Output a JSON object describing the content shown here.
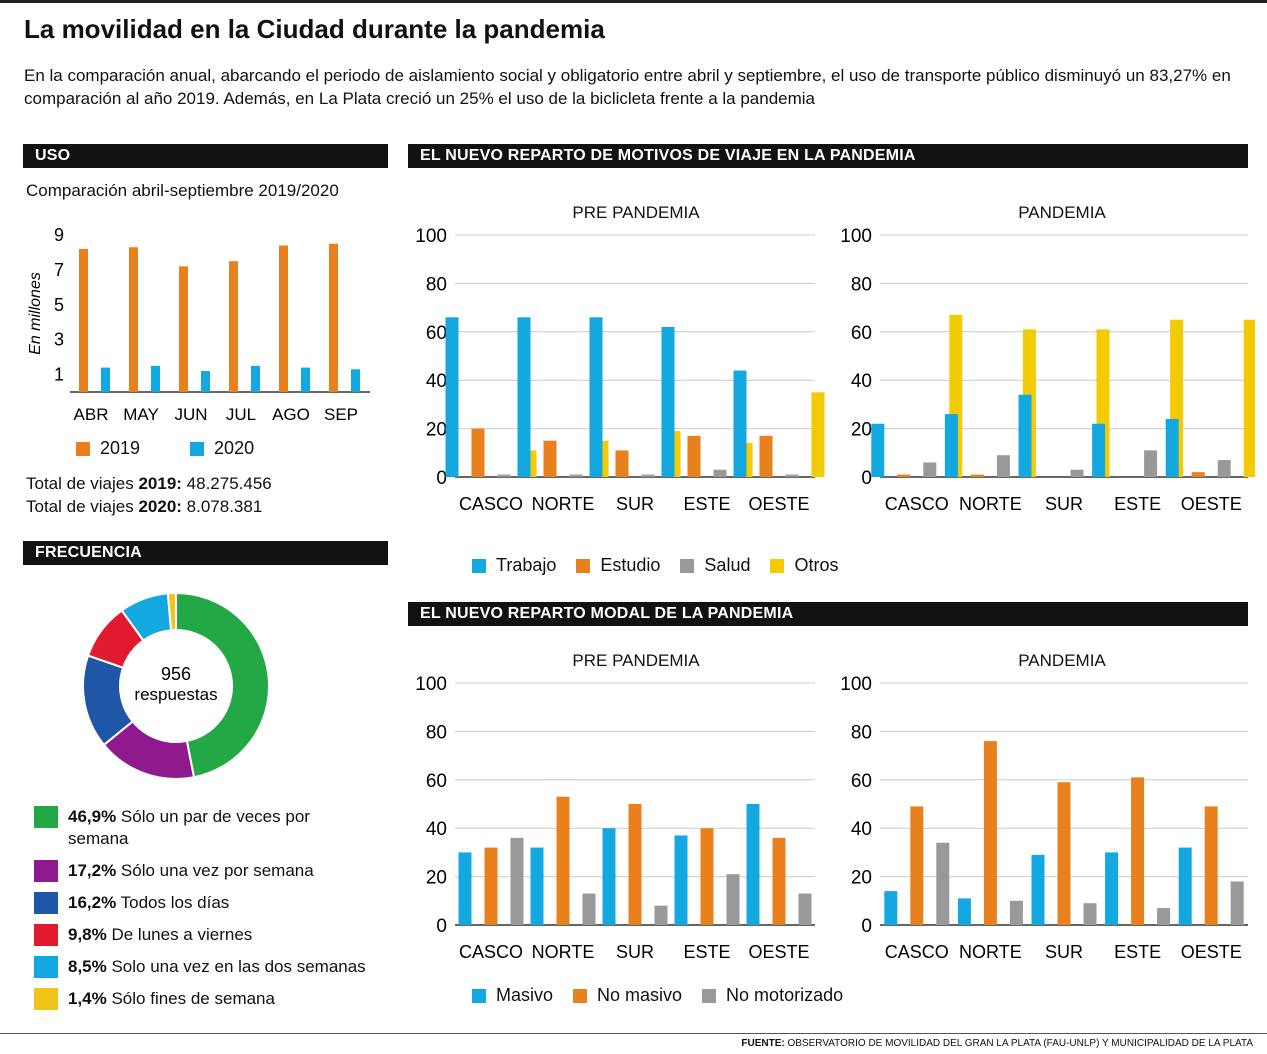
{
  "title": "La movilidad en la Ciudad durante la pandemia",
  "intro": "En la comparación anual, abarcando el periodo de aislamiento social y obligatorio entre abril y septiembre, el uso de transporte público disminuyó un 83,27% en comparación al año 2019. Además, en La Plata creció un 25% el uso de la biclicleta frente a la pandemia",
  "uso": {
    "header": "USO",
    "subtitle": "Comparación abril-septiembre 2019/2020",
    "totals": [
      {
        "prefix": "Total de viajes ",
        "year": "2019:",
        "value": " 48.275.456"
      },
      {
        "prefix": "Total de viajes ",
        "year": "2020:",
        "value": " 8.078.381"
      }
    ]
  },
  "frecuencia": {
    "header": "FRECUENCIA",
    "center_number": "956",
    "center_label": "respuestas",
    "items": [
      {
        "pct": "46,9%",
        "label": " Sólo un par de veces por semana",
        "value": 46.9,
        "color": "#22a845"
      },
      {
        "pct": "17,2%",
        "label": " Sólo una vez por semana",
        "value": 17.2,
        "color": "#8e1a8e"
      },
      {
        "pct": "16,2%",
        "label": " Todos los días",
        "value": 16.2,
        "color": "#1f56a8"
      },
      {
        "pct": "9,8%",
        "label": " De lunes a viernes",
        "value": 9.8,
        "color": "#e01b30"
      },
      {
        "pct": "8,5%",
        "label": " Solo una vez en las dos semanas",
        "value": 8.5,
        "color": "#14a8e0"
      },
      {
        "pct": "1,4%",
        "label": " Sólo fines de semana",
        "value": 1.4,
        "color": "#f0c419"
      }
    ]
  },
  "motivos": {
    "header": "EL NUEVO REPARTO DE MOTIVOS DE VIAJE EN LA PANDEMIA"
  },
  "modal": {
    "header": "EL NUEVO REPARTO MODAL DE LA PANDEMIA"
  },
  "footer": {
    "label": "FUENTE:",
    "text": " OBSERVATORIO DE MOVILIDAD DEL GRAN LA PLATA (FAU-UNLP) Y MUNICIPALIDAD DE LA PLATA"
  },
  "colors": {
    "orange": "#e8801e",
    "blue": "#14a8e0",
    "gray": "#999999",
    "yellow": "#f2cb05"
  },
  "chart_data": [
    {
      "id": "uso",
      "type": "bar",
      "title": "Comparación abril-septiembre 2019/2020",
      "ylabel": "En millones",
      "yticks": [
        1,
        3,
        5,
        7,
        9
      ],
      "ylim": [
        0,
        9
      ],
      "categories": [
        "ABR",
        "MAY",
        "JUN",
        "JUL",
        "AGO",
        "SEP"
      ],
      "series": [
        {
          "name": "2019",
          "color": "#e8801e",
          "values": [
            8.2,
            8.3,
            7.2,
            7.5,
            8.4,
            8.5
          ]
        },
        {
          "name": "2020",
          "color": "#14a8e0",
          "values": [
            1.4,
            1.5,
            1.2,
            1.5,
            1.4,
            1.3
          ]
        }
      ]
    },
    {
      "id": "motivos_pre",
      "type": "bar",
      "title": "PRE PANDEMIA",
      "ylim": [
        0,
        100
      ],
      "yticks": [
        0,
        20,
        40,
        60,
        80,
        100
      ],
      "categories": [
        "CASCO",
        "NORTE",
        "SUR",
        "ESTE",
        "OESTE"
      ],
      "series": [
        {
          "name": "Trabajo",
          "color": "#14a8e0",
          "values": [
            66,
            66,
            66,
            62,
            44
          ]
        },
        {
          "name": "Estudio",
          "color": "#e8801e",
          "values": [
            20,
            15,
            11,
            17,
            17
          ]
        },
        {
          "name": "Salud",
          "color": "#999999",
          "values": [
            1,
            1,
            1,
            3,
            1
          ]
        },
        {
          "name": "Otros",
          "color": "#f2cb05",
          "values": [
            11,
            15,
            19,
            14,
            35
          ]
        }
      ]
    },
    {
      "id": "motivos_pan",
      "type": "bar",
      "title": "PANDEMIA",
      "ylim": [
        0,
        100
      ],
      "yticks": [
        0,
        20,
        40,
        60,
        80,
        100
      ],
      "categories": [
        "CASCO",
        "NORTE",
        "SUR",
        "ESTE",
        "OESTE"
      ],
      "series": [
        {
          "name": "Trabajo",
          "color": "#14a8e0",
          "values": [
            22,
            26,
            34,
            22,
            24
          ]
        },
        {
          "name": "Estudio",
          "color": "#e8801e",
          "values": [
            1,
            1,
            0,
            0,
            2
          ]
        },
        {
          "name": "Salud",
          "color": "#999999",
          "values": [
            6,
            9,
            3,
            11,
            7
          ]
        },
        {
          "name": "Otros",
          "color": "#f2cb05",
          "values": [
            67,
            61,
            61,
            65,
            65
          ]
        }
      ]
    },
    {
      "id": "modal_pre",
      "type": "bar",
      "title": "PRE PANDEMIA",
      "ylim": [
        0,
        100
      ],
      "yticks": [
        0,
        20,
        40,
        60,
        80,
        100
      ],
      "categories": [
        "CASCO",
        "NORTE",
        "SUR",
        "ESTE",
        "OESTE"
      ],
      "series": [
        {
          "name": "Masivo",
          "color": "#14a8e0",
          "values": [
            30,
            32,
            40,
            37,
            50
          ]
        },
        {
          "name": "No masivo",
          "color": "#e8801e",
          "values": [
            32,
            53,
            50,
            40,
            36
          ]
        },
        {
          "name": "No motorizado",
          "color": "#999999",
          "values": [
            36,
            13,
            8,
            21,
            13
          ]
        }
      ]
    },
    {
      "id": "modal_pan",
      "type": "bar",
      "title": "PANDEMIA",
      "ylim": [
        0,
        100
      ],
      "yticks": [
        0,
        20,
        40,
        60,
        80,
        100
      ],
      "categories": [
        "CASCO",
        "NORTE",
        "SUR",
        "ESTE",
        "OESTE"
      ],
      "series": [
        {
          "name": "Masivo",
          "color": "#14a8e0",
          "values": [
            14,
            11,
            29,
            30,
            32
          ]
        },
        {
          "name": "No masivo",
          "color": "#e8801e",
          "values": [
            49,
            76,
            59,
            61,
            49
          ]
        },
        {
          "name": "No motorizado",
          "color": "#999999",
          "values": [
            34,
            10,
            9,
            7,
            18
          ]
        }
      ]
    },
    {
      "id": "frecuencia",
      "type": "pie",
      "title": "956 respuestas",
      "labels": [
        "Sólo un par de veces por semana",
        "Sólo una vez por semana",
        "Todos los días",
        "De lunes a viernes",
        "Solo una vez en las dos semanas",
        "Sólo fines de semana"
      ],
      "values": [
        46.9,
        17.2,
        16.2,
        9.8,
        8.5,
        1.4
      ]
    }
  ]
}
